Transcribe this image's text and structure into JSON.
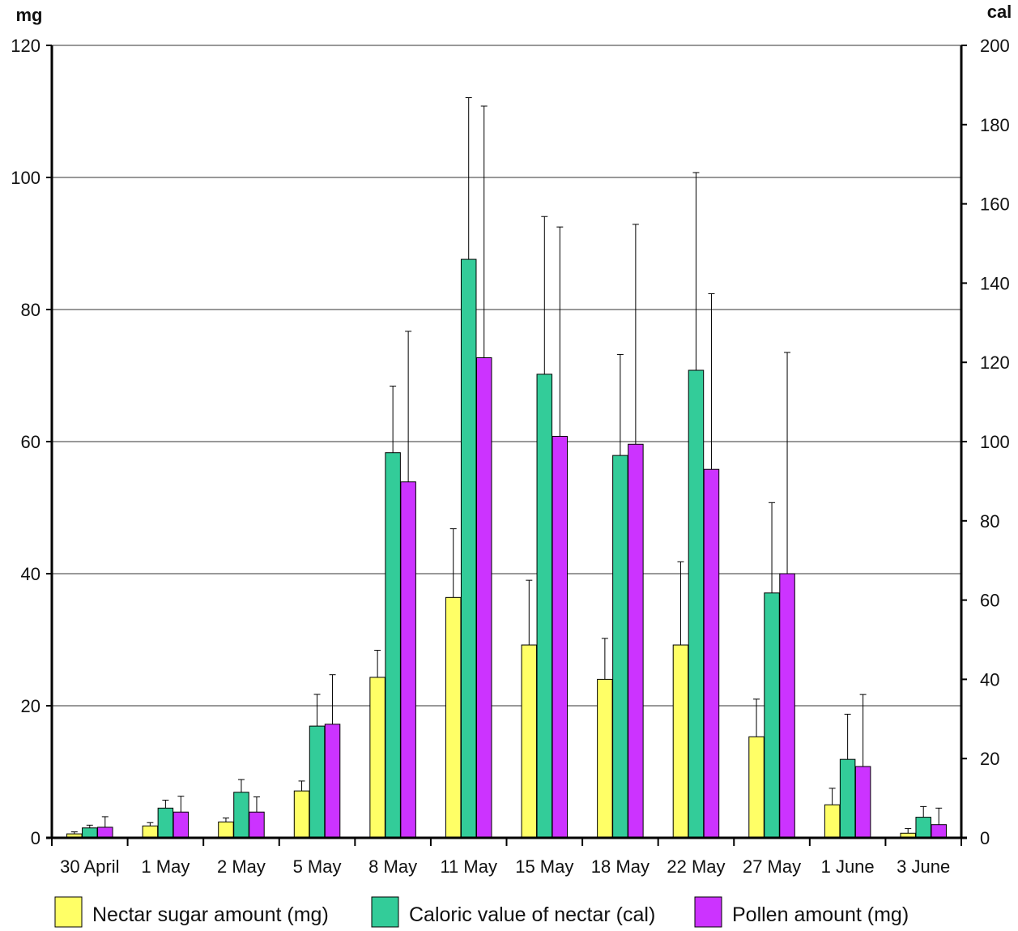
{
  "chart_data": {
    "type": "bar",
    "left_axis_unit": "mg",
    "right_axis_unit": "cal",
    "left_ylim": [
      0,
      120
    ],
    "left_ticks": [
      "0",
      "20",
      "40",
      "60",
      "80",
      "100",
      "120"
    ],
    "right_ylim": [
      0,
      200
    ],
    "right_ticks": [
      "0",
      "20",
      "40",
      "60",
      "80",
      "100",
      "120",
      "140",
      "160",
      "180",
      "200"
    ],
    "grid": "horizontal",
    "legend_position": "bottom",
    "categories": [
      "30 April",
      "1 May",
      "2 May",
      "5 May",
      "8 May",
      "11 May",
      "15 May",
      "18 May",
      "22 May",
      "27 May",
      "1 June",
      "3 June"
    ],
    "series": [
      {
        "name": "Nectar sugar amount (mg)",
        "axis": "left",
        "color": "#FFFF66",
        "values": [
          0.6,
          1.8,
          2.4,
          7.1,
          24.3,
          36.4,
          29.2,
          24.0,
          29.2,
          15.3,
          5.0,
          0.7
        ],
        "error": [
          0.3,
          0.5,
          0.6,
          1.5,
          4.1,
          10.4,
          9.8,
          6.2,
          12.6,
          5.7,
          2.5,
          0.7
        ]
      },
      {
        "name": "Caloric value of nectar (cal)",
        "axis": "right",
        "color": "#33CC99",
        "values": [
          2.5,
          7.5,
          11.5,
          28.2,
          97.2,
          146.0,
          117.0,
          96.5,
          118.0,
          61.8,
          19.8,
          5.2
        ],
        "error": [
          0.7,
          2.0,
          3.2,
          8.0,
          16.8,
          40.8,
          39.8,
          25.5,
          49.9,
          22.8,
          11.4,
          2.7
        ]
      },
      {
        "name": "Pollen amount (mg)",
        "axis": "left",
        "color": "#CC33FF",
        "values": [
          1.6,
          3.9,
          3.9,
          17.2,
          53.9,
          72.7,
          60.8,
          59.6,
          55.8,
          40.0,
          10.8,
          2.0
        ],
        "error": [
          1.6,
          2.4,
          2.3,
          7.5,
          22.8,
          38.1,
          31.7,
          33.3,
          26.6,
          33.5,
          10.9,
          2.5
        ]
      }
    ]
  }
}
